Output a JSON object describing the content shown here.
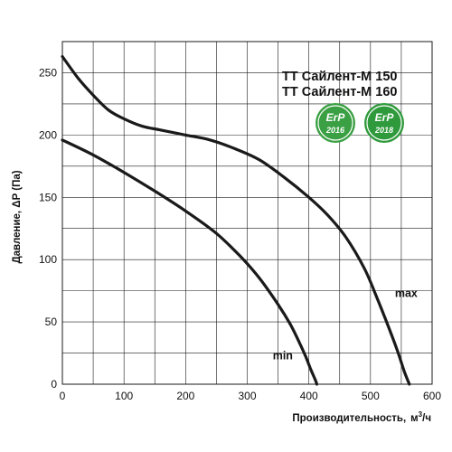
{
  "chart_data": {
    "type": "line",
    "title_lines": [
      "ТТ Сайлент-М 150",
      "ТТ Сайлент-М 160"
    ],
    "xlabel": "Производительность,",
    "xlabel_unit_base": "м",
    "xlabel_unit_sup": "3",
    "xlabel_unit_tail": "/ч",
    "ylabel": "Давление, ΔP (Па)",
    "xlim": [
      0,
      600
    ],
    "ylim": [
      0,
      275
    ],
    "x_ticks": [
      0,
      100,
      200,
      300,
      400,
      500,
      600
    ],
    "y_ticks": [
      0,
      50,
      100,
      150,
      200,
      250
    ],
    "x_ticks_labels": [
      "0",
      "100",
      "200",
      "300",
      "400",
      "500",
      "600"
    ],
    "y_ticks_labels": [
      "0",
      "50",
      "100",
      "150",
      "200",
      "250"
    ],
    "grid_x": [
      50,
      100,
      150,
      200,
      250,
      300,
      350,
      400,
      450,
      500,
      550
    ],
    "grid_y": [
      25,
      50,
      75,
      100,
      125,
      150,
      175,
      200,
      225,
      250
    ],
    "line_color": "#1a1a1a",
    "grid_color": "#1a1a1a",
    "series": [
      {
        "name": "max",
        "x": [
          0,
          25,
          50,
          75,
          100,
          130,
          160,
          200,
          240,
          280,
          320,
          360,
          400,
          430,
          460,
          490,
          510,
          530,
          545,
          555,
          563
        ],
        "y": [
          263,
          246,
          232,
          220,
          213,
          207,
          204,
          200,
          196,
          189,
          180,
          166,
          150,
          136,
          118,
          93,
          70,
          45,
          25,
          10,
          0
        ]
      },
      {
        "name": "min",
        "x": [
          0,
          50,
          100,
          150,
          200,
          250,
          290,
          320,
          350,
          370,
          385,
          395,
          403,
          410,
          413
        ],
        "y": [
          196,
          184,
          170,
          155,
          139,
          121,
          102,
          85,
          64,
          48,
          33,
          22,
          12,
          4,
          0
        ]
      }
    ],
    "badges": [
      {
        "text": "ErP",
        "year": "2016",
        "color": "#3aa043"
      },
      {
        "text": "ErP",
        "year": "2018",
        "color": "#2f9a3c"
      }
    ]
  }
}
